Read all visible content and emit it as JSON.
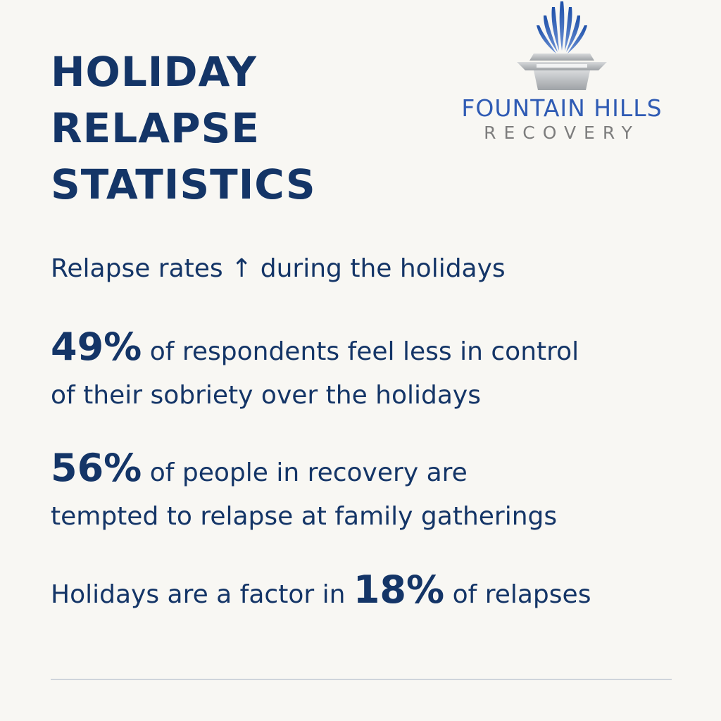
{
  "header": {
    "title_lines": [
      "HOLIDAY",
      "RELAPSE",
      "STATISTICS"
    ]
  },
  "logo": {
    "name": "FOUNTAIN HILLS",
    "subtitle": "RECOVERY",
    "icon": "fountain-icon",
    "colors": {
      "brand_blue": "#2f5bb4",
      "gray": "#7d7d7d",
      "silver": "#b9bcc0"
    }
  },
  "stats": [
    {
      "before": "Relapse rates ",
      "arrow": "↑",
      "after": " during the holidays"
    },
    {
      "value": "49%",
      "line1": " of respondents feel less in control",
      "line2": "of their sobriety over the holidays"
    },
    {
      "value": "56%",
      "line1": " of people in recovery are",
      "line2": "tempted to relapse at family gatherings"
    },
    {
      "before": "Holidays are a factor in ",
      "value": "18%",
      "after": " of relapses"
    }
  ],
  "colors": {
    "navy": "#143567",
    "background": "#f8f7f3",
    "divider": "#cfd4db"
  }
}
